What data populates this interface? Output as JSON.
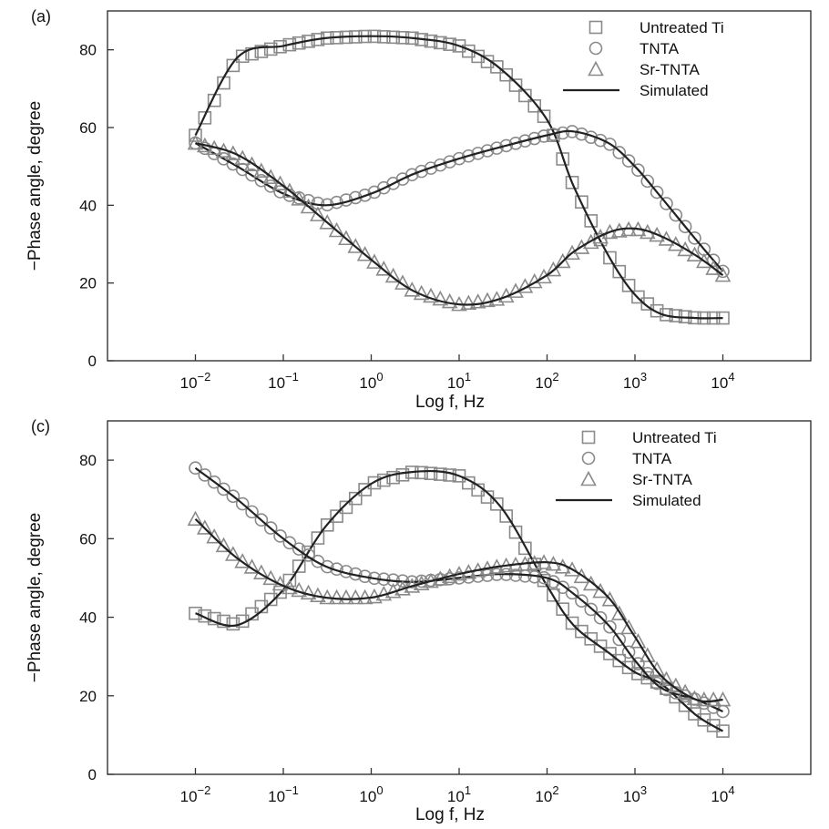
{
  "chart_data": [
    {
      "type": "scatter",
      "panel_label": "(a)",
      "xlabel": "Log f, Hz",
      "ylabel": "−Phase angle, degree",
      "x_scale": "log",
      "xlim": [
        0.001,
        100000
      ],
      "ylim": [
        0,
        90
      ],
      "x_ticks": [
        {
          "value": 0.01,
          "base": "10",
          "exp": "−2"
        },
        {
          "value": 0.1,
          "base": "10",
          "exp": "−1"
        },
        {
          "value": 1,
          "base": "10",
          "exp": "0"
        },
        {
          "value": 10,
          "base": "10",
          "exp": "1"
        },
        {
          "value": 100,
          "base": "10",
          "exp": "2"
        },
        {
          "value": 1000,
          "base": "10",
          "exp": "3"
        },
        {
          "value": 10000,
          "base": "10",
          "exp": "4"
        }
      ],
      "y_ticks": [
        "0",
        "20",
        "40",
        "60",
        "80"
      ],
      "legend_position": "top-right",
      "legend": [
        {
          "label": "Untreated Ti",
          "symbol": "square"
        },
        {
          "label": "TNTA",
          "symbol": "circle"
        },
        {
          "label": "Sr-TNTA",
          "symbol": "triangle"
        },
        {
          "label": "Simulated",
          "symbol": "line"
        }
      ],
      "series": [
        {
          "name": "Untreated Ti",
          "symbol": "square",
          "x": [
            0.01,
            0.03,
            0.1,
            0.3,
            1,
            3,
            10,
            30,
            100,
            200,
            500,
            1000,
            2000,
            5000,
            10000
          ],
          "y": [
            58,
            78,
            81,
            83,
            83.5,
            83,
            81,
            75,
            62,
            45,
            27,
            17,
            12,
            11,
            11
          ]
        },
        {
          "name": "TNTA",
          "symbol": "circle",
          "x": [
            0.01,
            0.03,
            0.1,
            0.3,
            1,
            3,
            10,
            30,
            100,
            200,
            500,
            1000,
            2000,
            5000,
            10000
          ],
          "y": [
            56,
            50,
            43,
            40,
            43,
            48,
            52,
            55,
            58,
            59,
            56,
            50,
            42,
            31,
            23
          ]
        },
        {
          "name": "Sr-TNTA",
          "symbol": "triangle",
          "x": [
            0.01,
            0.03,
            0.1,
            0.3,
            1,
            3,
            10,
            30,
            100,
            200,
            500,
            1000,
            2000,
            5000,
            10000
          ],
          "y": [
            56,
            53,
            45,
            36,
            26,
            18,
            14.5,
            16,
            22,
            28,
            33,
            34,
            32,
            27,
            22
          ]
        }
      ]
    },
    {
      "type": "scatter",
      "panel_label": "(c)",
      "xlabel": "Log f, Hz",
      "ylabel": "−Phase angle, degree",
      "x_scale": "log",
      "xlim": [
        0.001,
        100000
      ],
      "ylim": [
        0,
        90
      ],
      "x_ticks": [
        {
          "value": 0.01,
          "base": "10",
          "exp": "−2"
        },
        {
          "value": 0.1,
          "base": "10",
          "exp": "−1"
        },
        {
          "value": 1,
          "base": "10",
          "exp": "0"
        },
        {
          "value": 10,
          "base": "10",
          "exp": "1"
        },
        {
          "value": 100,
          "base": "10",
          "exp": "2"
        },
        {
          "value": 1000,
          "base": "10",
          "exp": "3"
        },
        {
          "value": 10000,
          "base": "10",
          "exp": "4"
        }
      ],
      "y_ticks": [
        "0",
        "20",
        "40",
        "60",
        "80"
      ],
      "legend_position": "top-right",
      "legend": [
        {
          "label": "Untreated Ti",
          "symbol": "square"
        },
        {
          "label": "TNTA",
          "symbol": "circle"
        },
        {
          "label": "Sr-TNTA",
          "symbol": "triangle"
        },
        {
          "label": "Simulated",
          "symbol": "line"
        }
      ],
      "series": [
        {
          "name": "Untreated Ti",
          "symbol": "square",
          "x": [
            0.01,
            0.03,
            0.1,
            0.3,
            1,
            3,
            10,
            30,
            100,
            200,
            500,
            1000,
            2000,
            5000,
            10000
          ],
          "y": [
            41,
            38,
            47,
            63,
            74,
            77,
            76,
            68,
            48,
            38,
            31,
            26,
            23,
            15,
            11
          ]
        },
        {
          "name": "TNTA",
          "symbol": "circle",
          "x": [
            0.01,
            0.03,
            0.1,
            0.3,
            1,
            3,
            10,
            30,
            100,
            200,
            500,
            1000,
            2000,
            5000,
            10000
          ],
          "y": [
            78,
            70,
            60,
            53,
            50,
            49,
            50,
            51,
            50,
            46,
            38,
            29,
            22,
            19,
            16
          ]
        },
        {
          "name": "Sr-TNTA",
          "symbol": "triangle",
          "x": [
            0.01,
            0.03,
            0.1,
            0.3,
            1,
            3,
            10,
            30,
            100,
            200,
            500,
            1000,
            2000,
            5000,
            10000
          ],
          "y": [
            65,
            55,
            48,
            45,
            45,
            48,
            51,
            53,
            54,
            52,
            45,
            35,
            25,
            19,
            19
          ]
        }
      ]
    }
  ]
}
